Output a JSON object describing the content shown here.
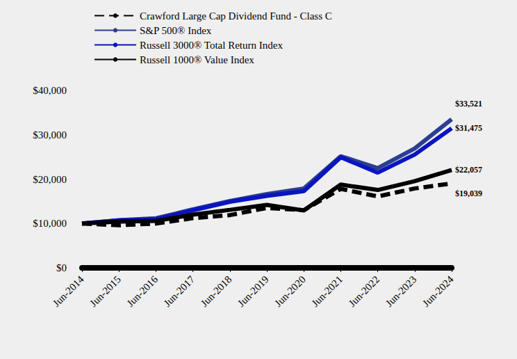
{
  "chart_data": {
    "type": "line",
    "categories": [
      "Jun-2014",
      "Jun-2015",
      "Jun-2016",
      "Jun-2017",
      "Jun-2018",
      "Jun-2019",
      "Jun-2020",
      "Jun-2021",
      "Jun-2022",
      "Jun-2023",
      "Jun-2024"
    ],
    "series": [
      {
        "name": "Crawford Large Cap Dividend Fund - Class C",
        "color": "#000000",
        "line_style": "dashed",
        "values": [
          10000,
          9600,
          10000,
          11200,
          11900,
          13500,
          13000,
          17800,
          16100,
          17900,
          19039
        ],
        "value_labels": [
          null,
          null,
          null,
          null,
          null,
          null,
          null,
          null,
          null,
          null,
          "$19,039"
        ]
      },
      {
        "name": "S&P 500® Index",
        "color": "#2b3f8f",
        "line_style": "solid",
        "values": [
          10000,
          10742,
          11171,
          13171,
          15065,
          16634,
          17883,
          25179,
          22505,
          26916,
          33521
        ],
        "value_labels": [
          null,
          null,
          null,
          null,
          null,
          null,
          null,
          null,
          null,
          null,
          "$33,521"
        ]
      },
      {
        "name": "Russell 3000® Total Return Index",
        "color": "#0a14c0",
        "line_style": "solid",
        "values": [
          10000,
          10713,
          10949,
          12975,
          14893,
          16231,
          17290,
          24928,
          21471,
          25541,
          31475
        ],
        "value_labels": [
          null,
          null,
          null,
          null,
          null,
          null,
          null,
          null,
          null,
          null,
          "$31,475"
        ]
      },
      {
        "name": "Russell 1000® Value Index",
        "color": "#000000",
        "line_style": "solid",
        "values": [
          10000,
          10413,
          10581,
          11996,
          13080,
          14190,
          12939,
          18772,
          17558,
          19556,
          22057
        ],
        "value_labels": [
          null,
          null,
          null,
          null,
          null,
          null,
          null,
          null,
          null,
          null,
          "$22,057"
        ]
      }
    ],
    "ylim": [
      0,
      40000
    ],
    "yticks": [
      {
        "value": 0,
        "label": "$0"
      },
      {
        "value": 10000,
        "label": "$10,000"
      },
      {
        "value": 20000,
        "label": "$20,000"
      },
      {
        "value": 30000,
        "label": "$30,000"
      },
      {
        "value": 40000,
        "label": "$40,000"
      }
    ],
    "grid": false,
    "legend": "top-left",
    "data_labels": true
  }
}
